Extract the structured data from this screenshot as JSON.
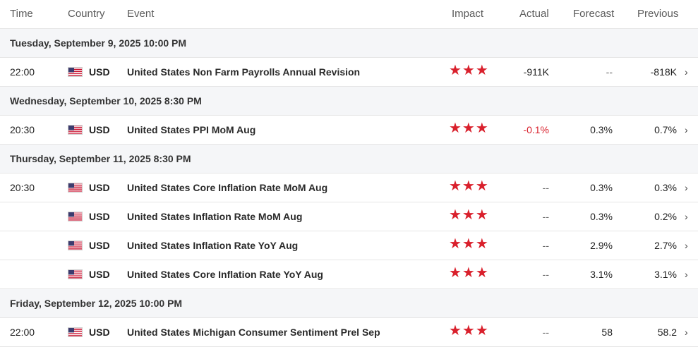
{
  "header": {
    "time": "Time",
    "country": "Country",
    "event": "Event",
    "impact": "Impact",
    "actual": "Actual",
    "forecast": "Forecast",
    "previous": "Previous"
  },
  "colors": {
    "impact_star": "#d9202c",
    "negative": "#d9202c",
    "group_bg": "#f5f6f8"
  },
  "groups": [
    {
      "date": "Tuesday, September 9, 2025 10:00 PM",
      "rows": [
        {
          "time": "22:00",
          "currency": "USD",
          "event": "United States Non Farm Payrolls Annual Revision",
          "impact": "★★★",
          "actual": "-911K",
          "forecast": "--",
          "previous": "-818K"
        }
      ]
    },
    {
      "date": "Wednesday, September 10, 2025 8:30 PM",
      "rows": [
        {
          "time": "20:30",
          "currency": "USD",
          "event": "United States PPI MoM Aug",
          "impact": "★★★",
          "actual": "-0.1%",
          "forecast": "0.3%",
          "previous": "0.7%"
        }
      ]
    },
    {
      "date": "Thursday, September 11, 2025 8:30 PM",
      "rows": [
        {
          "time": "20:30",
          "currency": "USD",
          "event": "United States Core Inflation Rate MoM Aug",
          "impact": "★★★",
          "actual": "--",
          "forecast": "0.3%",
          "previous": "0.3%"
        },
        {
          "time": "",
          "currency": "USD",
          "event": "United States Inflation Rate MoM Aug",
          "impact": "★★★",
          "actual": "--",
          "forecast": "0.3%",
          "previous": "0.2%"
        },
        {
          "time": "",
          "currency": "USD",
          "event": "United States Inflation Rate YoY Aug",
          "impact": "★★★",
          "actual": "--",
          "forecast": "2.9%",
          "previous": "2.7%"
        },
        {
          "time": "",
          "currency": "USD",
          "event": "United States Core Inflation Rate YoY Aug",
          "impact": "★★★",
          "actual": "--",
          "forecast": "3.1%",
          "previous": "3.1%"
        }
      ]
    },
    {
      "date": "Friday, September 12, 2025 10:00 PM",
      "rows": [
        {
          "time": "22:00",
          "currency": "USD",
          "event": "United States Michigan Consumer Sentiment Prel Sep",
          "impact": "★★★",
          "actual": "--",
          "forecast": "58",
          "previous": "58.2"
        }
      ]
    }
  ]
}
